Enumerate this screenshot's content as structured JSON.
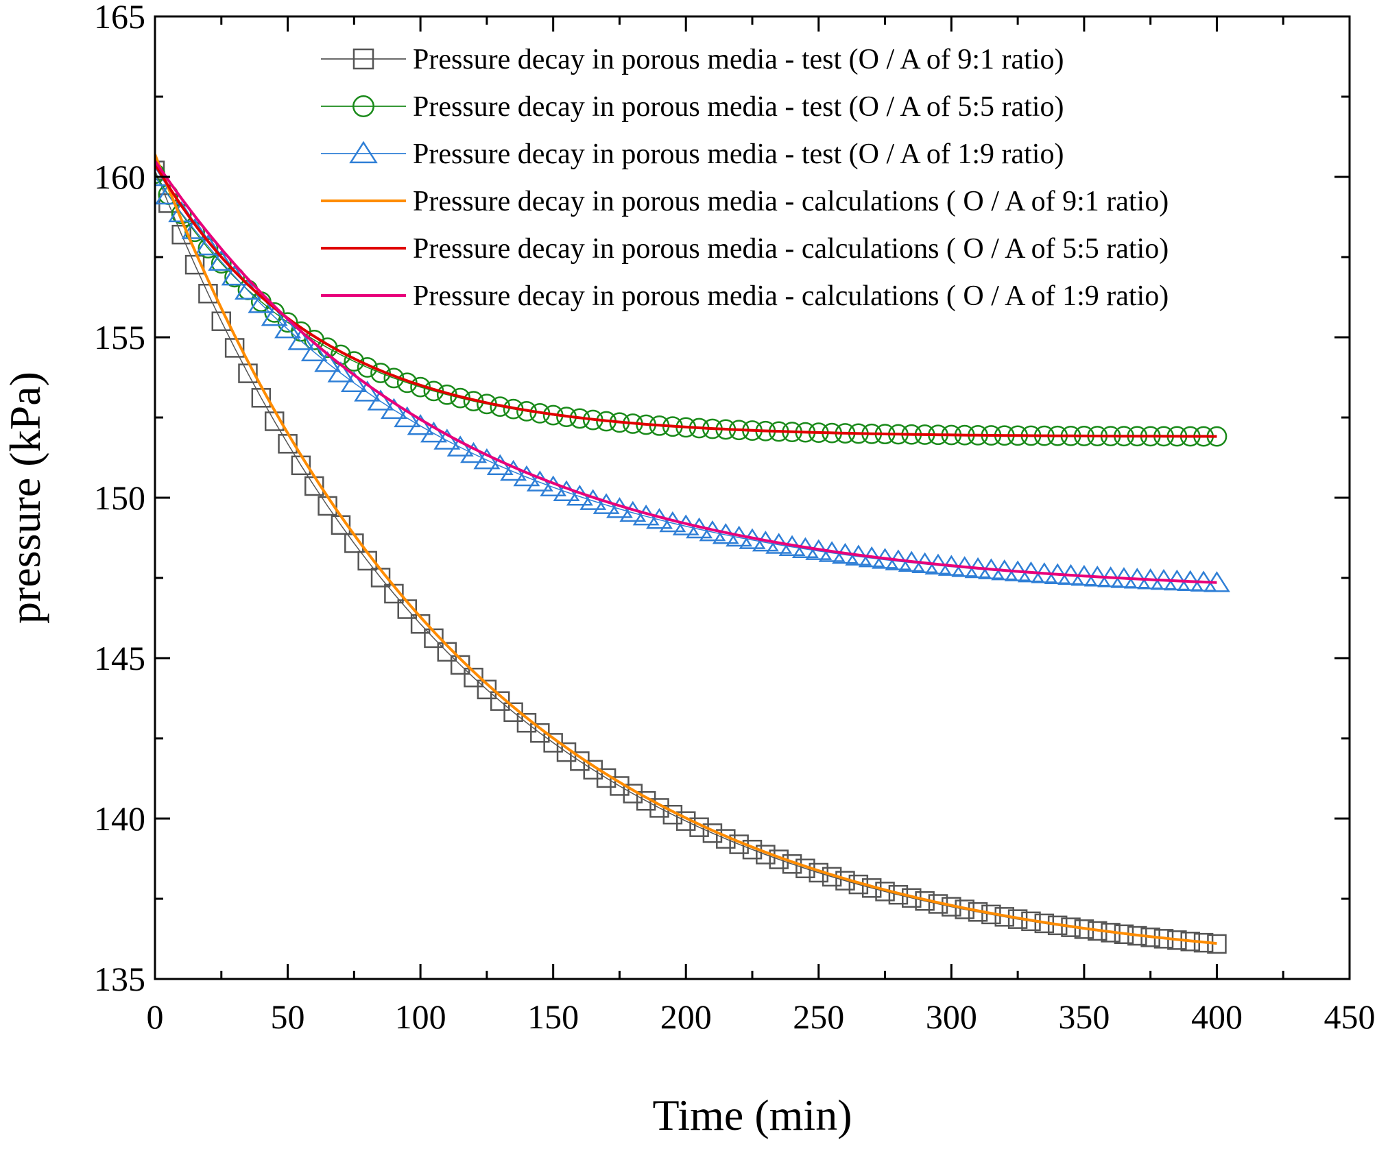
{
  "chart_data": {
    "type": "scatter",
    "title": "",
    "xlabel": "Time (min)",
    "ylabel": "pressure (kPa)",
    "xlim": [
      0,
      450
    ],
    "ylim": [
      135,
      165
    ],
    "xticks": [
      0,
      50,
      100,
      150,
      200,
      250,
      300,
      350,
      400,
      450
    ],
    "xtick_labels": [
      "0",
      "50",
      "100",
      "150",
      "200",
      "250",
      "300",
      "350",
      "400",
      "450"
    ],
    "yticks": [
      135,
      140,
      145,
      150,
      155,
      160,
      165
    ],
    "ytick_labels": [
      "135",
      "140",
      "145",
      "150",
      "155",
      "160",
      "165"
    ],
    "grid": false,
    "legend_position": "top-right",
    "series": [
      {
        "name": "Pressure decay in porous media - test (O / A of 9:1 ratio)",
        "kind": "markers",
        "marker": "square",
        "color": "#555555",
        "model": {
          "p_inf": 135.2,
          "amp": 25.0,
          "tau": 120,
          "t_start": 0,
          "t_end": 400,
          "step": 5
        }
      },
      {
        "name": "Pressure decay in porous media - test (O / A of 5:5 ratio)",
        "kind": "markers",
        "marker": "circle",
        "color": "#1a8a1a",
        "model": {
          "p_inf": 151.9,
          "amp": 8.2,
          "tau": 60,
          "t_start": 0,
          "t_end": 400,
          "step": 5
        }
      },
      {
        "name": "Pressure decay in porous media - test (O / A of 1:9 ratio)",
        "kind": "markers",
        "marker": "triangle",
        "color": "#2f7fd6",
        "model": {
          "p_inf": 147.0,
          "amp": 13.0,
          "tau": 110,
          "t_start": 0,
          "t_end": 400,
          "step": 5
        }
      },
      {
        "name": "Pressure decay in porous media - calculations ( O / A of 9:1 ratio)",
        "kind": "line",
        "color": "#ff8c00",
        "model": {
          "p_inf": 135.2,
          "amp": 25.5,
          "tau": 120,
          "t_start": 0,
          "t_end": 400,
          "step": 2
        }
      },
      {
        "name": "Pressure decay in porous media - calculations ( O / A of 5:5 ratio)",
        "kind": "line",
        "color": "#e00000",
        "model": {
          "p_inf": 151.9,
          "amp": 8.5,
          "tau": 60,
          "t_start": 0,
          "t_end": 400,
          "step": 2
        }
      },
      {
        "name": "Pressure decay in porous media - calculations ( O / A of 1:9 ratio)",
        "kind": "line",
        "color": "#e8007a",
        "model": {
          "p_inf": 147.0,
          "amp": 13.5,
          "tau": 110,
          "t_start": 0,
          "t_end": 400,
          "step": 2
        }
      }
    ]
  }
}
